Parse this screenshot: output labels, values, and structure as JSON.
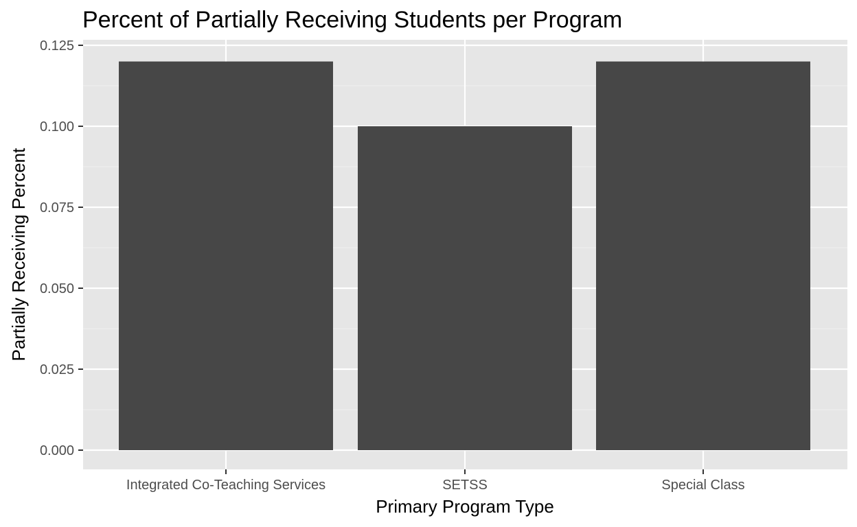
{
  "chart_data": {
    "type": "bar",
    "title": "Percent of Partially Receiving Students per Program",
    "xlabel": "Primary Program Type",
    "ylabel": "Partially Receiving Percent",
    "categories": [
      "Integrated Co-Teaching Services",
      "SETSS",
      "Special Class"
    ],
    "values": [
      0.12,
      0.1,
      0.12
    ],
    "ylim": [
      0,
      0.125
    ],
    "yticks": [
      0.0,
      0.025,
      0.05,
      0.075,
      0.1,
      0.125
    ],
    "ytick_labels": [
      "0.000",
      "0.025",
      "0.050",
      "0.075",
      "0.100",
      "0.125"
    ],
    "grid": true,
    "legend": "none",
    "colors": {
      "bar": "#474747",
      "panel": "#e6e6e6",
      "grid_major": "#ffffff",
      "grid_minor": "#f0f0f0"
    }
  }
}
